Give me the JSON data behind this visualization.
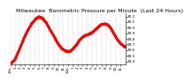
{
  "title": "Milwaukee  Barometric Pressure per Minute  (Last 24 Hours)",
  "line_color": "#ff0000",
  "bg_color": "#ffffff",
  "plot_bg_color": "#ffffff",
  "grid_color": "#aaaaaa",
  "ylim": [
    29.35,
    30.25
  ],
  "yticks": [
    29.4,
    29.5,
    29.6,
    29.7,
    29.8,
    29.9,
    30.0,
    30.1,
    30.2
  ],
  "ytick_labels": [
    "29.4",
    "29.5",
    "29.6",
    "29.7",
    "29.8",
    "29.9",
    "30.0",
    "30.1",
    "30.2"
  ],
  "x_tick_positions": [
    0,
    60,
    120,
    180,
    240,
    300,
    360,
    420,
    480,
    540,
    600,
    660,
    720,
    780,
    840,
    900,
    960,
    1020,
    1080,
    1140,
    1200,
    1260,
    1320,
    1380
  ],
  "x_tick_labels": [
    "12a",
    "1",
    "2",
    "3",
    "4",
    "5",
    "6",
    "7",
    "8",
    "9",
    "10",
    "11",
    "12p",
    "1",
    "2",
    "3",
    "4",
    "5",
    "6",
    "7",
    "8",
    "9",
    "10",
    "11"
  ],
  "title_fontsize": 4.5,
  "tick_fontsize": 3.0,
  "marker_size": 0.8,
  "waypoints": [
    [
      0,
      29.37
    ],
    [
      50,
      29.44
    ],
    [
      100,
      29.6
    ],
    [
      150,
      29.78
    ],
    [
      200,
      29.93
    ],
    [
      260,
      30.08
    ],
    [
      310,
      30.16
    ],
    [
      350,
      30.2
    ],
    [
      390,
      30.18
    ],
    [
      440,
      30.1
    ],
    [
      490,
      29.97
    ],
    [
      540,
      29.85
    ],
    [
      590,
      29.72
    ],
    [
      640,
      29.63
    ],
    [
      690,
      29.59
    ],
    [
      720,
      29.58
    ],
    [
      750,
      29.59
    ],
    [
      780,
      29.63
    ],
    [
      820,
      29.7
    ],
    [
      860,
      29.78
    ],
    [
      900,
      29.84
    ],
    [
      940,
      29.87
    ],
    [
      980,
      29.89
    ],
    [
      1020,
      29.92
    ],
    [
      1060,
      29.97
    ],
    [
      1100,
      30.02
    ],
    [
      1130,
      30.06
    ],
    [
      1160,
      30.07
    ],
    [
      1190,
      30.07
    ],
    [
      1220,
      30.05
    ],
    [
      1260,
      29.98
    ],
    [
      1300,
      29.88
    ],
    [
      1340,
      29.78
    ],
    [
      1380,
      29.72
    ],
    [
      1410,
      29.68
    ],
    [
      1439,
      29.66
    ]
  ]
}
